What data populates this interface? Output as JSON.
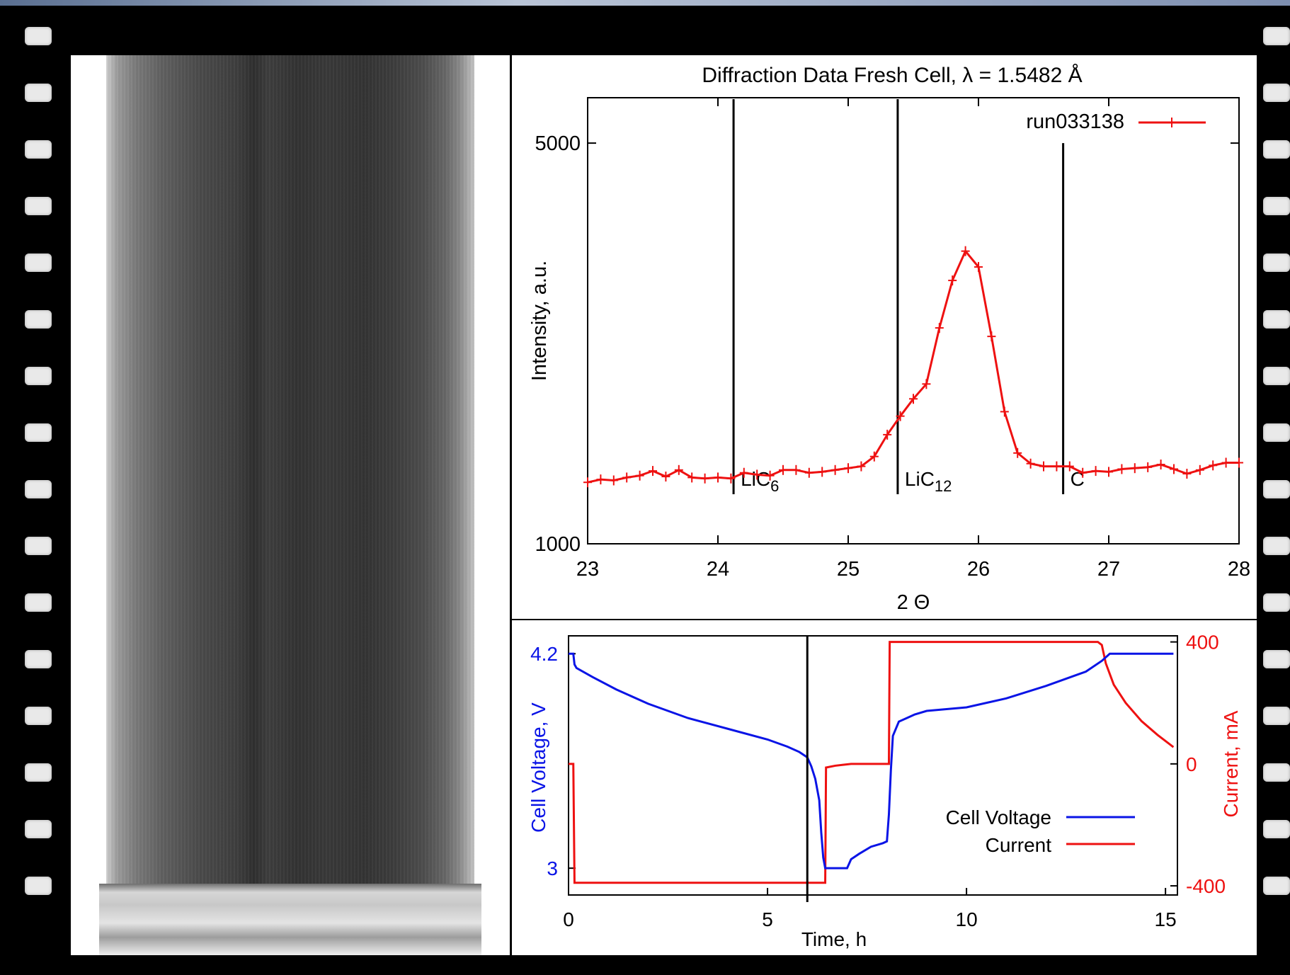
{
  "colors": {
    "voltage": "#0a14e6",
    "current": "#ee1111",
    "intensity": "#ee1111",
    "marker": "#000000"
  },
  "chart_data": [
    {
      "type": "line",
      "title": "Diffraction Data Fresh Cell, λ = 1.5482 Å",
      "xlabel": "2 Θ",
      "ylabel": "Intensity, a.u.",
      "xlim": [
        23,
        28
      ],
      "ylim": [
        1000,
        6000
      ],
      "yscale": "log",
      "xticks": [
        "23",
        "24",
        "25",
        "26",
        "27",
        "28"
      ],
      "yticks": [
        "1000",
        "5000"
      ],
      "legend": "top-right",
      "series": [
        {
          "name": "run033138",
          "x": [
            23.0,
            23.1,
            23.2,
            23.3,
            23.4,
            23.5,
            23.6,
            23.7,
            23.8,
            23.9,
            24.0,
            24.1,
            24.2,
            24.3,
            24.4,
            24.5,
            24.6,
            24.7,
            24.8,
            24.9,
            25.0,
            25.1,
            25.2,
            25.3,
            25.4,
            25.5,
            25.6,
            25.7,
            25.8,
            25.9,
            26.0,
            26.1,
            26.2,
            26.3,
            26.4,
            26.5,
            26.6,
            26.7,
            26.8,
            26.9,
            27.0,
            27.1,
            27.2,
            27.3,
            27.4,
            27.5,
            27.6,
            27.7,
            27.8,
            27.9,
            28.0
          ],
          "y": [
            1280,
            1295,
            1290,
            1305,
            1315,
            1340,
            1310,
            1345,
            1305,
            1300,
            1305,
            1300,
            1330,
            1320,
            1315,
            1345,
            1345,
            1330,
            1335,
            1345,
            1355,
            1365,
            1420,
            1550,
            1670,
            1790,
            1900,
            2380,
            2880,
            3240,
            3040,
            2300,
            1700,
            1440,
            1380,
            1365,
            1365,
            1365,
            1330,
            1340,
            1335,
            1350,
            1355,
            1360,
            1375,
            1350,
            1325,
            1345,
            1370,
            1385,
            1385
          ]
        }
      ],
      "markers": [
        {
          "label": "LiC",
          "subscript": "6",
          "x": 24.12
        },
        {
          "label": "LiC",
          "subscript": "12",
          "x": 25.38
        },
        {
          "label": "C",
          "subscript": "",
          "x": 26.65
        }
      ]
    },
    {
      "type": "line",
      "xlabel": "Time, h",
      "ylabel": "Cell Voltage, V",
      "y2label": "Current, mA",
      "xlim": [
        0,
        15.3
      ],
      "ylim": [
        2.85,
        4.3
      ],
      "y2lim": [
        -430,
        420
      ],
      "xticks": [
        "0",
        "5",
        "10",
        "15"
      ],
      "yticks": [
        "3",
        "4.2"
      ],
      "y2ticks": [
        "-400",
        "0",
        "400"
      ],
      "legend": "bottom-right",
      "vline_x": 6.0,
      "series": [
        {
          "name": "Cell Voltage",
          "axis": "left",
          "x": [
            0.0,
            0.12,
            0.15,
            0.2,
            0.6,
            1.2,
            2.0,
            3.0,
            4.0,
            5.0,
            5.5,
            5.8,
            6.0,
            6.1,
            6.2,
            6.3,
            6.35,
            6.4,
            6.45,
            6.5,
            6.5,
            7.0,
            7.1,
            7.3,
            7.6,
            7.9,
            8.0,
            8.05,
            8.1,
            8.15,
            8.3,
            8.5,
            8.7,
            9.0,
            9.5,
            10.0,
            11.0,
            12.0,
            13.0,
            13.4,
            13.6,
            14.0,
            15.2
          ],
          "y": [
            4.2,
            4.2,
            4.14,
            4.12,
            4.07,
            4.0,
            3.92,
            3.84,
            3.78,
            3.72,
            3.68,
            3.65,
            3.62,
            3.57,
            3.5,
            3.38,
            3.2,
            3.06,
            3.0,
            3.0,
            3.0,
            3.0,
            3.05,
            3.08,
            3.12,
            3.14,
            3.15,
            3.3,
            3.55,
            3.74,
            3.82,
            3.84,
            3.86,
            3.88,
            3.89,
            3.9,
            3.95,
            4.02,
            4.1,
            4.16,
            4.2,
            4.2,
            4.2
          ]
        },
        {
          "name": "Current",
          "axis": "right",
          "x": [
            0.0,
            0.12,
            0.15,
            6.45,
            6.47,
            6.55,
            6.7,
            6.9,
            7.1,
            8.05,
            8.07,
            13.3,
            13.4,
            13.5,
            13.7,
            14.0,
            14.4,
            14.8,
            15.2
          ],
          "y": [
            0,
            0,
            -390,
            -390,
            -12,
            -10,
            -6,
            -3,
            0,
            0,
            400,
            400,
            390,
            330,
            260,
            200,
            140,
            95,
            55
          ]
        }
      ]
    }
  ]
}
